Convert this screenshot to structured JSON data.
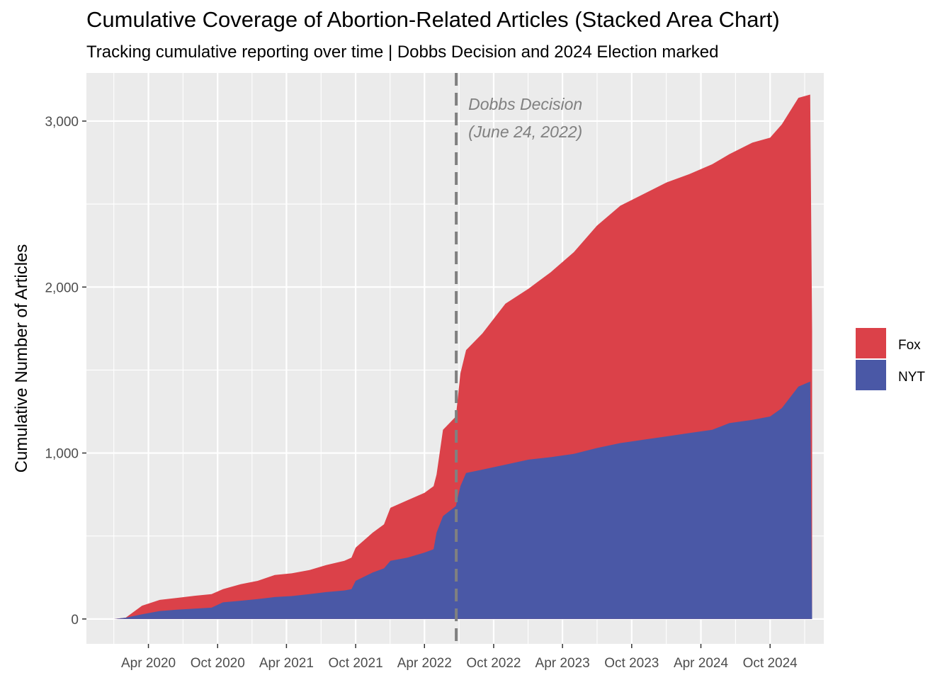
{
  "chart_data": {
    "type": "area",
    "stacked": true,
    "title": "Cumulative Coverage of Abortion-Related Articles (Stacked Area Chart)",
    "subtitle": "Tracking cumulative reporting over time | Dobbs Decision and 2024 Election marked",
    "xlabel": "",
    "ylabel": "Cumulative Number of Articles",
    "xlim": [
      "2019-10-20",
      "2025-02-20"
    ],
    "ylim": [
      -150,
      3290
    ],
    "yticks": [
      0,
      1000,
      2000,
      3000
    ],
    "ytick_labels": [
      "0",
      "1,000",
      "2,000",
      "3,000"
    ],
    "xticks": [
      "2020-04-01",
      "2020-10-01",
      "2021-04-01",
      "2021-10-01",
      "2022-04-01",
      "2022-10-01",
      "2023-04-01",
      "2023-10-01",
      "2024-04-01",
      "2024-10-01"
    ],
    "xtick_labels": [
      "Apr 2020",
      "Oct 2020",
      "Apr 2021",
      "Oct 2021",
      "Apr 2022",
      "Oct 2022",
      "Apr 2023",
      "Oct 2023",
      "Apr 2024",
      "Oct 2024"
    ],
    "grid": true,
    "legend_position": "right",
    "series": [
      {
        "name": "NYT",
        "color": "#4A58A6",
        "points": [
          [
            "2020-01-01",
            0
          ],
          [
            "2020-02-01",
            8
          ],
          [
            "2020-03-15",
            28
          ],
          [
            "2020-05-01",
            48
          ],
          [
            "2020-06-15",
            56
          ],
          [
            "2020-08-01",
            62
          ],
          [
            "2020-09-15",
            68
          ],
          [
            "2020-10-15",
            100
          ],
          [
            "2020-12-01",
            110
          ],
          [
            "2021-01-15",
            120
          ],
          [
            "2021-03-01",
            132
          ],
          [
            "2021-04-15",
            138
          ],
          [
            "2021-06-01",
            150
          ],
          [
            "2021-07-15",
            162
          ],
          [
            "2021-09-01",
            172
          ],
          [
            "2021-09-20",
            180
          ],
          [
            "2021-10-01",
            230
          ],
          [
            "2021-11-15",
            280
          ],
          [
            "2021-12-15",
            305
          ],
          [
            "2022-01-01",
            350
          ],
          [
            "2022-02-15",
            370
          ],
          [
            "2022-04-01",
            400
          ],
          [
            "2022-04-25",
            420
          ],
          [
            "2022-05-03",
            520
          ],
          [
            "2022-05-20",
            620
          ],
          [
            "2022-06-23",
            680
          ],
          [
            "2022-07-05",
            800
          ],
          [
            "2022-07-20",
            880
          ],
          [
            "2022-09-01",
            900
          ],
          [
            "2022-11-01",
            930
          ],
          [
            "2023-01-01",
            960
          ],
          [
            "2023-03-01",
            975
          ],
          [
            "2023-05-01",
            995
          ],
          [
            "2023-07-01",
            1030
          ],
          [
            "2023-09-01",
            1060
          ],
          [
            "2023-11-01",
            1080
          ],
          [
            "2024-01-01",
            1100
          ],
          [
            "2024-03-01",
            1120
          ],
          [
            "2024-05-01",
            1140
          ],
          [
            "2024-06-15",
            1180
          ],
          [
            "2024-08-15",
            1200
          ],
          [
            "2024-10-01",
            1220
          ],
          [
            "2024-11-01",
            1270
          ],
          [
            "2024-12-15",
            1400
          ],
          [
            "2025-01-15",
            1430
          ],
          [
            "2025-01-20",
            0
          ]
        ]
      },
      {
        "name": "Fox",
        "color": "#DB4149",
        "points": [
          [
            "2020-01-01",
            0
          ],
          [
            "2020-02-01",
            8
          ],
          [
            "2020-03-15",
            80
          ],
          [
            "2020-05-01",
            115
          ],
          [
            "2020-06-15",
            127
          ],
          [
            "2020-08-01",
            140
          ],
          [
            "2020-09-15",
            150
          ],
          [
            "2020-10-15",
            180
          ],
          [
            "2020-12-01",
            210
          ],
          [
            "2021-01-15",
            230
          ],
          [
            "2021-03-01",
            265
          ],
          [
            "2021-04-15",
            275
          ],
          [
            "2021-06-01",
            295
          ],
          [
            "2021-07-15",
            325
          ],
          [
            "2021-09-01",
            350
          ],
          [
            "2021-09-20",
            370
          ],
          [
            "2021-10-01",
            430
          ],
          [
            "2021-11-15",
            520
          ],
          [
            "2021-12-15",
            570
          ],
          [
            "2022-01-01",
            670
          ],
          [
            "2022-02-15",
            715
          ],
          [
            "2022-04-01",
            760
          ],
          [
            "2022-04-25",
            800
          ],
          [
            "2022-05-03",
            870
          ],
          [
            "2022-05-20",
            1140
          ],
          [
            "2022-06-23",
            1220
          ],
          [
            "2022-07-05",
            1480
          ],
          [
            "2022-07-20",
            1620
          ],
          [
            "2022-09-01",
            1720
          ],
          [
            "2022-11-01",
            1900
          ],
          [
            "2023-01-01",
            1990
          ],
          [
            "2023-03-01",
            2090
          ],
          [
            "2023-05-01",
            2210
          ],
          [
            "2023-07-01",
            2370
          ],
          [
            "2023-09-01",
            2490
          ],
          [
            "2023-11-01",
            2560
          ],
          [
            "2024-01-01",
            2630
          ],
          [
            "2024-03-01",
            2680
          ],
          [
            "2024-05-01",
            2740
          ],
          [
            "2024-06-15",
            2800
          ],
          [
            "2024-08-15",
            2870
          ],
          [
            "2024-10-01",
            2900
          ],
          [
            "2024-11-01",
            2980
          ],
          [
            "2024-12-15",
            3140
          ],
          [
            "2025-01-15",
            3160
          ],
          [
            "2025-01-20",
            1735
          ]
        ]
      }
    ],
    "annotations": [
      {
        "x": "2022-06-24",
        "type": "vline",
        "style": "dashed",
        "label_line1": "Dobbs Decision",
        "label_line2": "(June 24, 2022)"
      }
    ]
  },
  "colors": {
    "panel_bg": "#EBEBEB",
    "grid": "#FFFFFF",
    "vline": "#808080"
  }
}
